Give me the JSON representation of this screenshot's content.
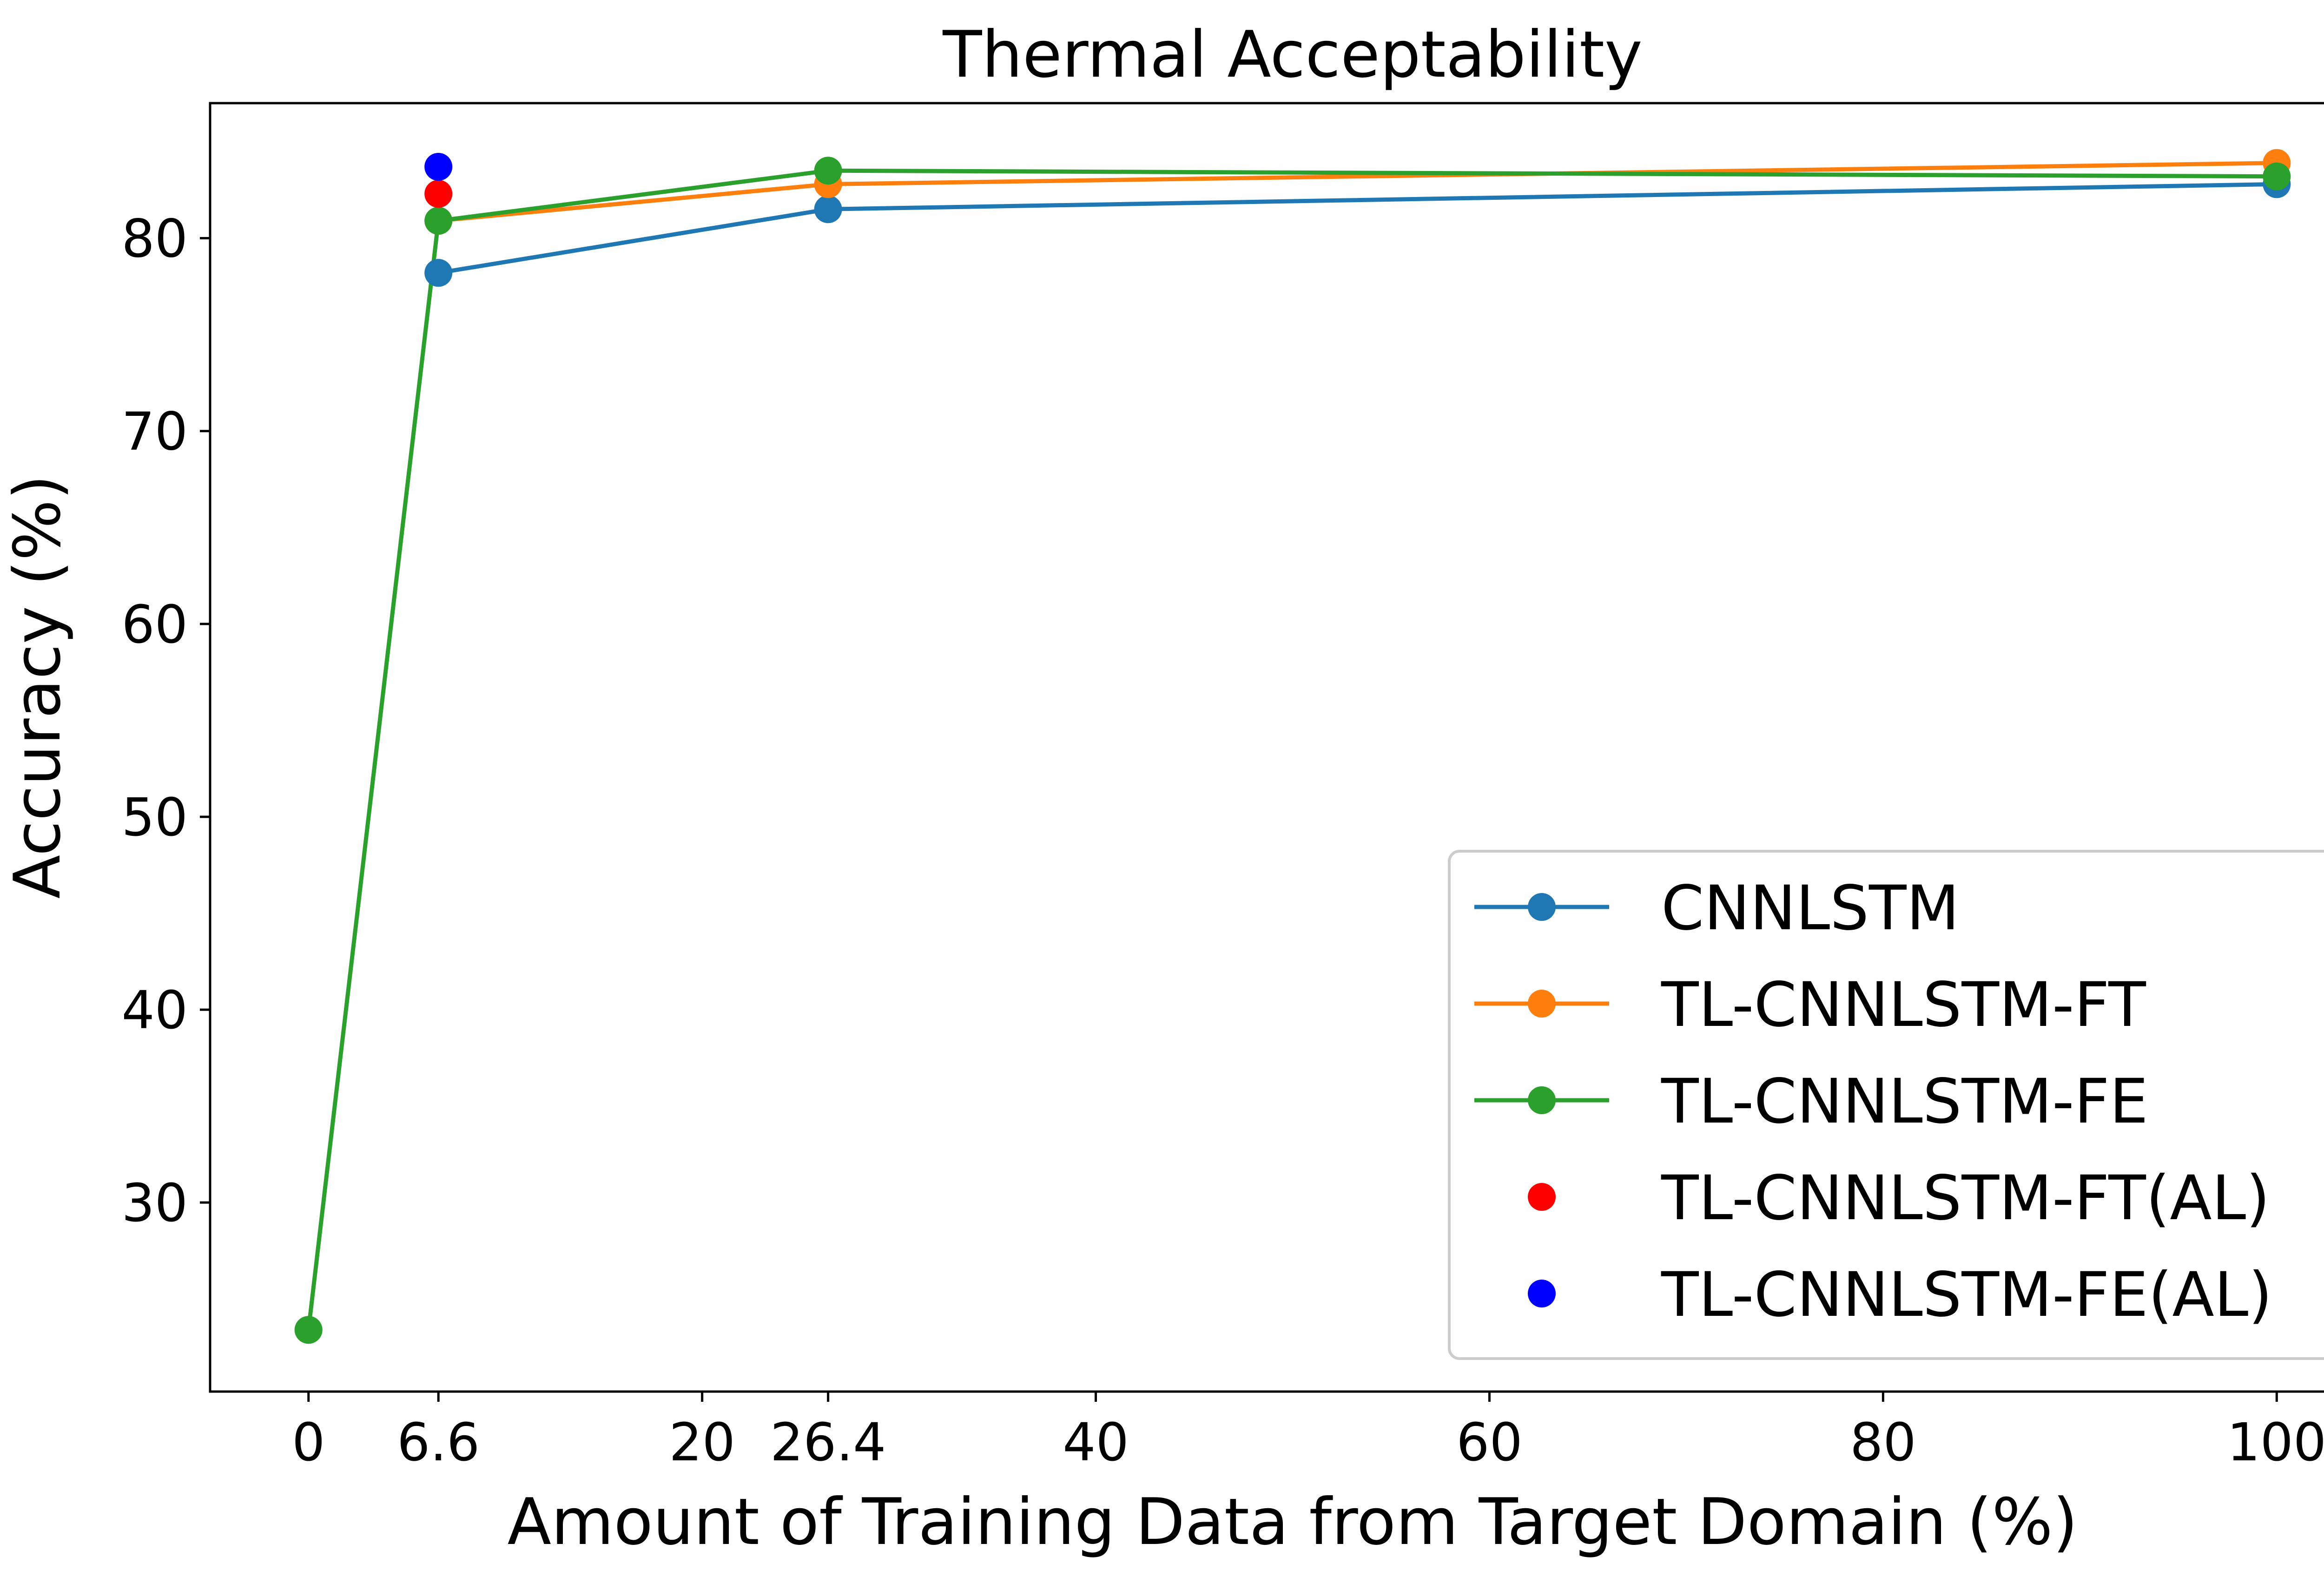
{
  "chart_data": {
    "type": "line",
    "title": "Thermal Acceptability",
    "xlabel": "Amount of Training Data from Target Domain (%)",
    "ylabel": "Accuracy (%)",
    "xlim": [
      -5,
      105
    ],
    "ylim": [
      20.2,
      87.0
    ],
    "xticks": [
      0,
      6.6,
      20,
      26.4,
      40,
      60,
      80,
      100
    ],
    "xtick_labels": [
      "0",
      "6.6",
      "20",
      "26.4",
      "40",
      "60",
      "80",
      "100"
    ],
    "yticks": [
      30,
      40,
      50,
      60,
      70,
      80
    ],
    "ytick_labels": [
      "30",
      "40",
      "50",
      "60",
      "70",
      "80"
    ],
    "grid": false,
    "legend_position": "lower-right",
    "series": [
      {
        "name": "CNNLSTM",
        "kind": "line",
        "color": "#1f77b4",
        "points": [
          [
            6.6,
            78.2
          ],
          [
            26.4,
            81.5
          ],
          [
            100,
            82.8
          ]
        ]
      },
      {
        "name": "TL-CNNLSTM-FT",
        "kind": "line",
        "color": "#ff7f0e",
        "points": [
          [
            6.6,
            80.9
          ],
          [
            26.4,
            82.8
          ],
          [
            100,
            83.9
          ]
        ]
      },
      {
        "name": "TL-CNNLSTM-FE",
        "kind": "line",
        "color": "#2ca02c",
        "points": [
          [
            0,
            23.4
          ],
          [
            6.6,
            80.9
          ],
          [
            26.4,
            83.5
          ],
          [
            100,
            83.2
          ]
        ]
      },
      {
        "name": "TL-CNNLSTM-FT(AL)",
        "kind": "scatter",
        "color": "#ff0000",
        "points": [
          [
            6.6,
            82.3
          ]
        ]
      },
      {
        "name": "TL-CNNLSTM-FE(AL)",
        "kind": "scatter",
        "color": "#0000ff",
        "points": [
          [
            6.6,
            83.7
          ]
        ]
      }
    ]
  }
}
